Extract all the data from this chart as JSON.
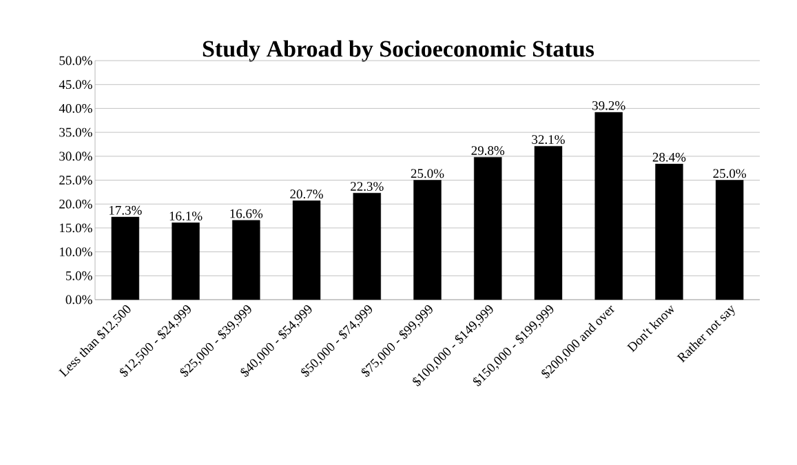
{
  "chart_data": {
    "type": "bar",
    "title": "Study Abroad by Socioeconomic Status",
    "categories": [
      "Less than $12,500",
      "$12,500 - $24,999",
      "$25,000 - $39,999",
      "$40,000 - $54,999",
      "$50,000 - $74,999",
      "$75,000 - $99,999",
      "$100,000 - $149,999",
      "$150,000 - $199,999",
      "$200,000 and over",
      "Don't know",
      "Rather not say"
    ],
    "values": [
      17.3,
      16.1,
      16.6,
      20.7,
      22.3,
      25.0,
      29.8,
      32.1,
      39.2,
      28.4,
      25.0
    ],
    "value_labels": [
      "17.3%",
      "16.1%",
      "16.6%",
      "20.7%",
      "22.3%",
      "25.0%",
      "29.8%",
      "32.1%",
      "39.2%",
      "28.4%",
      "25.0%"
    ],
    "color": "#000000",
    "ylim": [
      0,
      50
    ],
    "yticks": [
      {
        "value": 0,
        "label": "0.0%"
      },
      {
        "value": 5,
        "label": "5.0%"
      },
      {
        "value": 10,
        "label": "10.0%"
      },
      {
        "value": 15,
        "label": "15.0%"
      },
      {
        "value": 20,
        "label": "20.0%"
      },
      {
        "value": 25,
        "label": "25.0%"
      },
      {
        "value": 30,
        "label": "30.0%"
      },
      {
        "value": 35,
        "label": "35.0%"
      },
      {
        "value": 40,
        "label": "40.0%"
      },
      {
        "value": 45,
        "label": "45.0%"
      },
      {
        "value": 50,
        "label": "50.0%"
      }
    ],
    "grid": "y"
  }
}
